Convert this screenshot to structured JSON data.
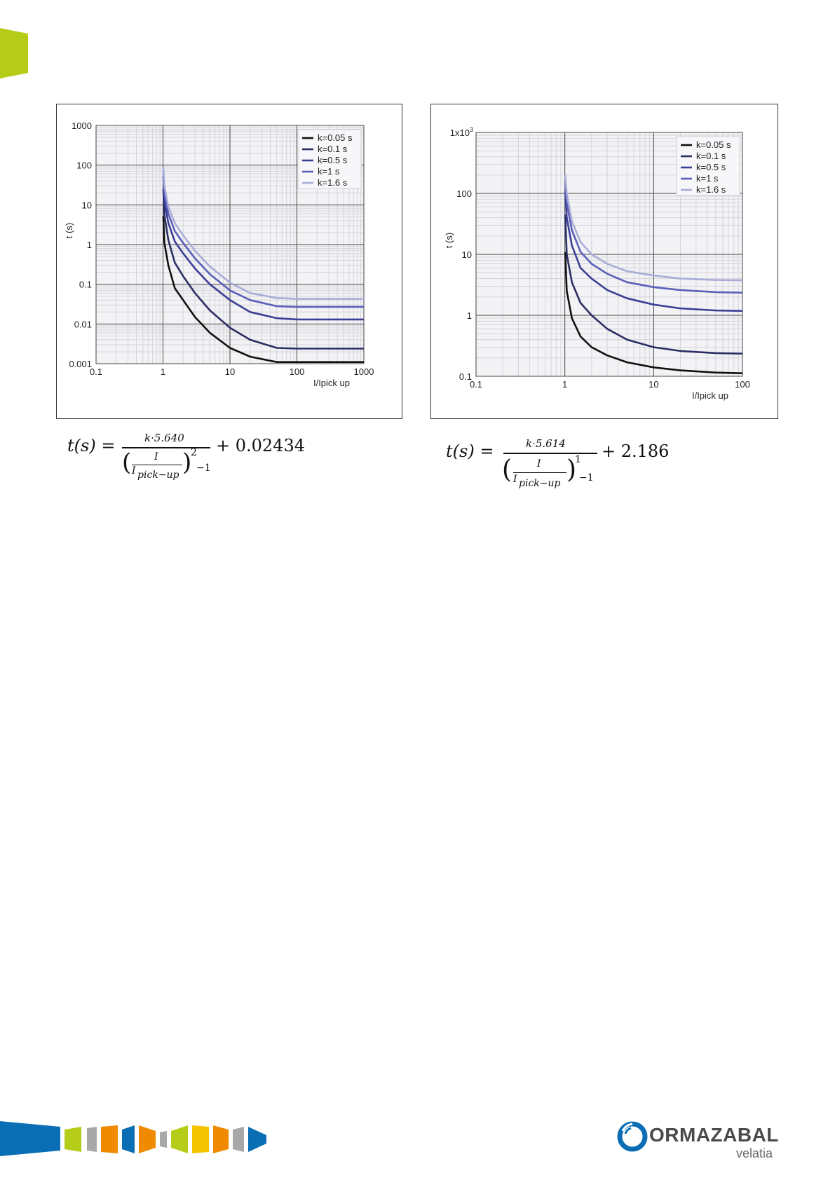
{
  "chart_data": [
    {
      "type": "line",
      "title": "",
      "xlabel": "I/Ipick up",
      "ylabel": "t (s)",
      "xscale": "log",
      "yscale": "log",
      "xlim": [
        0.1,
        1000
      ],
      "ylim": [
        0.001,
        1000
      ],
      "x_ticks": [
        "0.1",
        "1",
        "10",
        "100",
        "1000"
      ],
      "y_ticks": [
        "1000",
        "100",
        "10",
        "1",
        "0.1",
        "0.01",
        "0.001"
      ],
      "grid": true,
      "legend_position": "top-right",
      "series": [
        {
          "name": "k=0.05 s",
          "color": "#111111",
          "x": [
            1.01,
            1.05,
            1.2,
            1.5,
            2,
            3,
            5,
            10,
            20,
            50,
            100,
            1000
          ],
          "values": [
            5.2,
            1.1,
            0.3,
            0.08,
            0.04,
            0.015,
            0.006,
            0.0025,
            0.0015,
            0.0011,
            0.0011,
            0.0011
          ]
        },
        {
          "name": "k=0.1 s",
          "color": "#2b2e63",
          "x": [
            1.01,
            1.05,
            1.2,
            1.5,
            2,
            3,
            5,
            10,
            20,
            50,
            100,
            1000
          ],
          "values": [
            25,
            5.5,
            1.3,
            0.35,
            0.16,
            0.06,
            0.022,
            0.008,
            0.004,
            0.0025,
            0.0024,
            0.0024
          ]
        },
        {
          "name": "k=0.5 s",
          "color": "#3b3f95",
          "x": [
            1.01,
            1.05,
            1.2,
            1.5,
            2,
            3,
            5,
            10,
            20,
            50,
            100,
            1000
          ],
          "values": [
            55,
            12,
            3.5,
            1.2,
            0.6,
            0.25,
            0.1,
            0.04,
            0.02,
            0.014,
            0.013,
            0.013
          ]
        },
        {
          "name": "k=1 s",
          "color": "#5a5fb8",
          "x": [
            1.01,
            1.05,
            1.2,
            1.5,
            2,
            3,
            5,
            10,
            20,
            50,
            100,
            1000
          ],
          "values": [
            75,
            20,
            6,
            2.2,
            1.1,
            0.45,
            0.18,
            0.07,
            0.04,
            0.028,
            0.027,
            0.027
          ]
        },
        {
          "name": "k=1.6 s",
          "color": "#a9acd8",
          "x": [
            1.01,
            1.05,
            1.2,
            1.5,
            2,
            3,
            5,
            10,
            20,
            50,
            100,
            1000
          ],
          "values": [
            90,
            30,
            9,
            3.5,
            1.7,
            0.7,
            0.28,
            0.11,
            0.06,
            0.045,
            0.043,
            0.043
          ]
        }
      ]
    },
    {
      "type": "line",
      "title": "",
      "xlabel": "I/Ipick up",
      "ylabel": "t (s)",
      "xscale": "log",
      "yscale": "log",
      "xlim": [
        0.1,
        100
      ],
      "ylim": [
        0.1,
        1000
      ],
      "x_ticks": [
        "0.1",
        "1",
        "10",
        "100"
      ],
      "y_ticks_pre": "1x10",
      "y_ticks_sup": "3",
      "y_ticks": [
        "100",
        "10",
        "1",
        "0.1"
      ],
      "grid": true,
      "legend_position": "top-right",
      "series": [
        {
          "name": "k=0.05 s",
          "color": "#111111",
          "x": [
            1.01,
            1.05,
            1.2,
            1.5,
            2,
            3,
            5,
            10,
            20,
            50,
            100
          ],
          "values": [
            11,
            2.5,
            0.9,
            0.45,
            0.3,
            0.22,
            0.17,
            0.14,
            0.125,
            0.115,
            0.112
          ]
        },
        {
          "name": "k=0.1 s",
          "color": "#2b2e63",
          "x": [
            1.01,
            1.05,
            1.2,
            1.5,
            2,
            3,
            5,
            10,
            20,
            50,
            100
          ],
          "values": [
            45,
            10,
            3.5,
            1.6,
            1.0,
            0.6,
            0.4,
            0.3,
            0.26,
            0.24,
            0.235
          ]
        },
        {
          "name": "k=0.5 s",
          "color": "#3b3f95",
          "x": [
            1.01,
            1.05,
            1.2,
            1.5,
            2,
            3,
            5,
            10,
            20,
            50,
            100
          ],
          "values": [
            110,
            40,
            14,
            6,
            4,
            2.6,
            1.9,
            1.5,
            1.3,
            1.2,
            1.18
          ]
        },
        {
          "name": "k=1 s",
          "color": "#5a5fb8",
          "x": [
            1.01,
            1.05,
            1.2,
            1.5,
            2,
            3,
            5,
            10,
            20,
            50,
            100
          ],
          "values": [
            150,
            70,
            25,
            11,
            7,
            4.8,
            3.5,
            2.9,
            2.6,
            2.4,
            2.35
          ]
        },
        {
          "name": "k=1.6 s",
          "color": "#a9acd8",
          "x": [
            1.01,
            1.05,
            1.2,
            1.5,
            2,
            3,
            5,
            10,
            20,
            50,
            100
          ],
          "values": [
            200,
            100,
            35,
            16,
            10,
            7,
            5.3,
            4.5,
            4.0,
            3.8,
            3.75
          ]
        }
      ]
    }
  ],
  "formulas": {
    "left": {
      "lhs": "t(s) =",
      "numerator": "k·5.640",
      "inner_num": "I",
      "inner_den": "I",
      "inner_den_sub": "pick−up",
      "exponent": "2",
      "minus_one": "−1",
      "plus_const": "+ 0.02434"
    },
    "right": {
      "lhs": "t(s) =",
      "numerator": "k·5.614",
      "inner_num": "I",
      "inner_den": "I",
      "inner_den_sub": "pick−up",
      "exponent": "1",
      "minus_one": "−1",
      "plus_const": "+ 2.186"
    }
  },
  "logo": {
    "name": "ORMAZABAL",
    "subtitle": "velatia",
    "colors": {
      "accent_green": "#b5cc18",
      "brand_blue": "#0a6eb4",
      "orange": "#f08a00",
      "yellow": "#f5c400",
      "gray": "#a8a8a8"
    }
  }
}
